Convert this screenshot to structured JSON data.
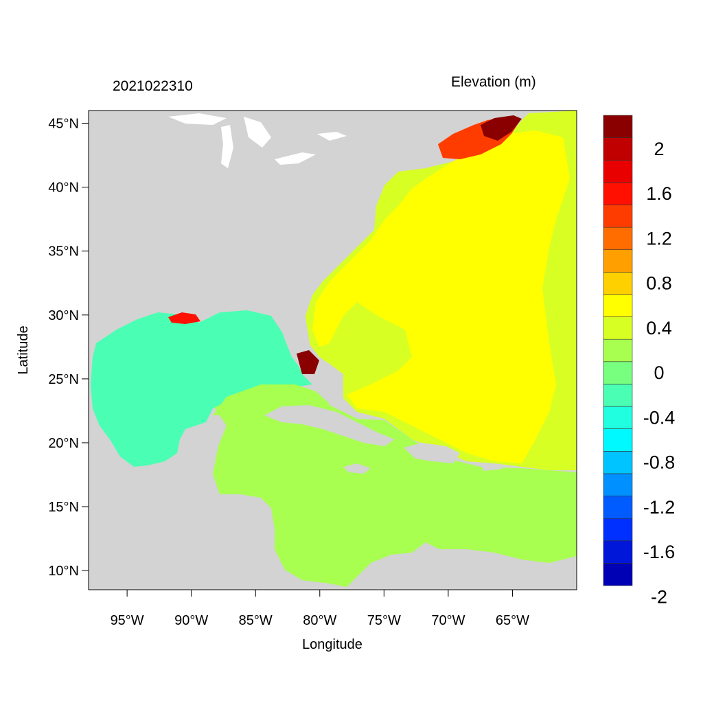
{
  "header": {
    "left_title": "2021022310",
    "right_title": "Elevation (m)"
  },
  "axes": {
    "xlabel": "Longitude",
    "ylabel": "Latitude",
    "xlim": [
      -98,
      -60
    ],
    "ylim": [
      8.5,
      46
    ],
    "x_ticks": [
      {
        "value": -95,
        "label": "95°W"
      },
      {
        "value": -90,
        "label": "90°W"
      },
      {
        "value": -85,
        "label": "85°W"
      },
      {
        "value": -80,
        "label": "80°W"
      },
      {
        "value": -75,
        "label": "75°W"
      },
      {
        "value": -70,
        "label": "70°W"
      },
      {
        "value": -65,
        "label": "65°W"
      }
    ],
    "y_ticks": [
      {
        "value": 45,
        "label": "45°N"
      },
      {
        "value": 40,
        "label": "40°N"
      },
      {
        "value": 35,
        "label": "35°N"
      },
      {
        "value": 30,
        "label": "30°N"
      },
      {
        "value": 25,
        "label": "25°N"
      },
      {
        "value": 20,
        "label": "20°N"
      },
      {
        "value": 15,
        "label": "15°N"
      },
      {
        "value": 10,
        "label": "10°N"
      }
    ]
  },
  "colorbar": {
    "colors": [
      "#0000b4",
      "#0016d8",
      "#0030ff",
      "#005cff",
      "#0090ff",
      "#00c4ff",
      "#00f8ff",
      "#20ffe0",
      "#4affb4",
      "#78ff80",
      "#a8ff50",
      "#d8ff24",
      "#ffff00",
      "#ffd000",
      "#ffa000",
      "#ff6c00",
      "#ff3c00",
      "#ff1000",
      "#e80000",
      "#c00000",
      "#8a0000"
    ],
    "labels": [
      {
        "value": 2,
        "label": "2"
      },
      {
        "value": 1.6,
        "label": "1.6"
      },
      {
        "value": 1.2,
        "label": "1.2"
      },
      {
        "value": 0.8,
        "label": "0.8"
      },
      {
        "value": 0.4,
        "label": "0.4"
      },
      {
        "value": 0,
        "label": "0"
      },
      {
        "value": -0.4,
        "label": "-0.4"
      },
      {
        "value": -0.8,
        "label": "-0.8"
      },
      {
        "value": -1.2,
        "label": "-1.2"
      },
      {
        "value": -1.6,
        "label": "-1.6"
      },
      {
        "value": -2,
        "label": "-2"
      }
    ]
  },
  "colors": {
    "land": "#d3d3d3",
    "gulf": "#4affb4",
    "caribbean": "#a8ff50",
    "atlantic": "#d8ff24",
    "atlantic_high": "#ffff00",
    "lakes": "#ffffff"
  }
}
